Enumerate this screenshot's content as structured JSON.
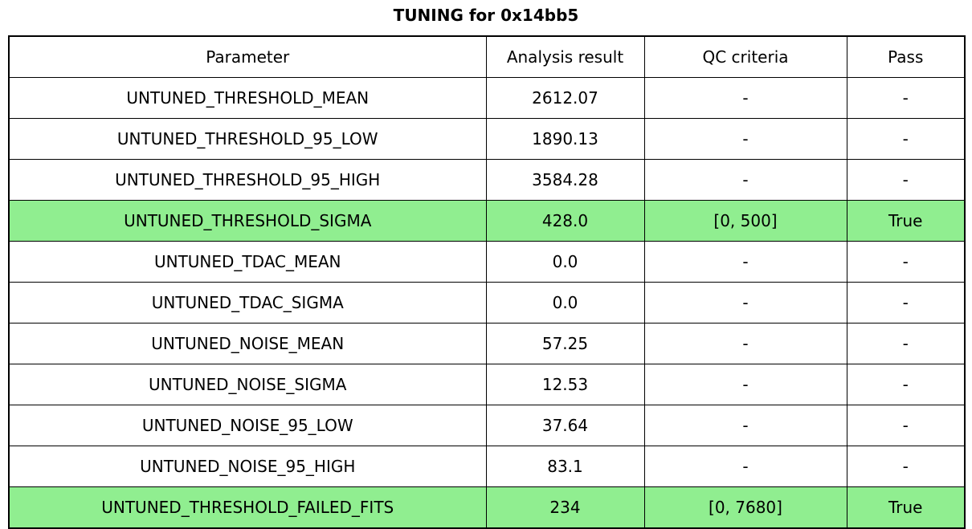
{
  "title": "TUNING for 0x14bb5",
  "chart_data": {
    "type": "table",
    "title": "TUNING for 0x14bb5",
    "columns": [
      "Parameter",
      "Analysis result",
      "QC criteria",
      "Pass"
    ],
    "rows": [
      {
        "cells": [
          "UNTUNED_THRESHOLD_MEAN",
          "2612.07",
          "-",
          "-"
        ],
        "highlight": false
      },
      {
        "cells": [
          "UNTUNED_THRESHOLD_95_LOW",
          "1890.13",
          "-",
          "-"
        ],
        "highlight": false
      },
      {
        "cells": [
          "UNTUNED_THRESHOLD_95_HIGH",
          "3584.28",
          "-",
          "-"
        ],
        "highlight": false
      },
      {
        "cells": [
          "UNTUNED_THRESHOLD_SIGMA",
          "428.0",
          "[0, 500]",
          "True"
        ],
        "highlight": true
      },
      {
        "cells": [
          "UNTUNED_TDAC_MEAN",
          "0.0",
          "-",
          "-"
        ],
        "highlight": false
      },
      {
        "cells": [
          "UNTUNED_TDAC_SIGMA",
          "0.0",
          "-",
          "-"
        ],
        "highlight": false
      },
      {
        "cells": [
          "UNTUNED_NOISE_MEAN",
          "57.25",
          "-",
          "-"
        ],
        "highlight": false
      },
      {
        "cells": [
          "UNTUNED_NOISE_SIGMA",
          "12.53",
          "-",
          "-"
        ],
        "highlight": false
      },
      {
        "cells": [
          "UNTUNED_NOISE_95_LOW",
          "37.64",
          "-",
          "-"
        ],
        "highlight": false
      },
      {
        "cells": [
          "UNTUNED_NOISE_95_HIGH",
          "83.1",
          "-",
          "-"
        ],
        "highlight": false
      },
      {
        "cells": [
          "UNTUNED_THRESHOLD_FAILED_FITS",
          "234",
          "[0, 7680]",
          "True"
        ],
        "highlight": true
      }
    ],
    "highlighted_parameters": [
      "UNTUNED_THRESHOLD_SIGMA",
      "UNTUNED_THRESHOLD_FAILED_FITS"
    ],
    "highlight_color": "#90EE90",
    "colors": {
      "background": "#ffffff",
      "border": "#000000",
      "text": "#000000"
    },
    "layout": {
      "grid": "on",
      "cell_alignment": "center"
    }
  }
}
